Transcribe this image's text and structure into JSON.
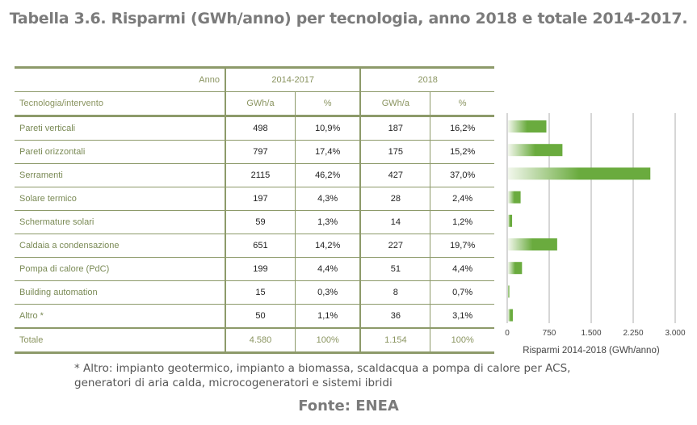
{
  "title": "Tabella 3.6. Risparmi (GWh/anno) per tecnologia, anno 2018 e totale 2014-2017.",
  "table": {
    "anno_label": "Anno",
    "period1": "2014-2017",
    "period2": "2018",
    "col_label": "Tecnologia/intervento",
    "gwh": "GWh/a",
    "pct": "%",
    "rows": [
      [
        "Pareti verticali",
        "498",
        "10,9%",
        "187",
        "16,2%"
      ],
      [
        "Pareti orizzontali",
        "797",
        "17,4%",
        "175",
        "15,2%"
      ],
      [
        "Serramenti",
        "2115",
        "46,2%",
        "427",
        "37,0%"
      ],
      [
        "Solare termico",
        "197",
        "4,3%",
        "28",
        "2,4%"
      ],
      [
        "Schermature solari",
        "59",
        "1,3%",
        "14",
        "1,2%"
      ],
      [
        "Caldaia a condensazione",
        "651",
        "14,2%",
        "227",
        "19,7%"
      ],
      [
        "Pompa di calore (PdC)",
        "199",
        "4,4%",
        "51",
        "4,4%"
      ],
      [
        "Building automation",
        "15",
        "0,3%",
        "8",
        "0,7%"
      ],
      [
        "Altro *",
        "50",
        "1,1%",
        "36",
        "3,1%"
      ]
    ],
    "total": [
      "Totale",
      "4.580",
      "100%",
      "1.154",
      "100%"
    ]
  },
  "chart_data": {
    "type": "bar",
    "orientation": "horizontal",
    "categories": [
      "Pareti verticali",
      "Pareti orizzontali",
      "Serramenti",
      "Solare termico",
      "Schermature solari",
      "Caldaia a condensazione",
      "Pompa di calore (PdC)",
      "Building automation",
      "Altro *"
    ],
    "values": [
      685,
      972,
      2542,
      225,
      73,
      878,
      250,
      23,
      86
    ],
    "xlabel": "Risparmi 2014-2018 (GWh/anno)",
    "xlim": [
      0,
      3000
    ],
    "ticks": [
      "0",
      "750",
      "1.500",
      "2.250",
      "3.000"
    ],
    "tick_values": [
      0,
      750,
      1500,
      2250,
      3000
    ],
    "color": "#6aab3e",
    "grid": true
  },
  "note_line1": "* Altro: impianto geotermico, impianto a biomassa, scaldacqua a pompa di calore per ACS,",
  "note_line2": "generatori di aria calda, microcogeneratori e sistemi ibridi",
  "source": "Fonte: ENEA"
}
